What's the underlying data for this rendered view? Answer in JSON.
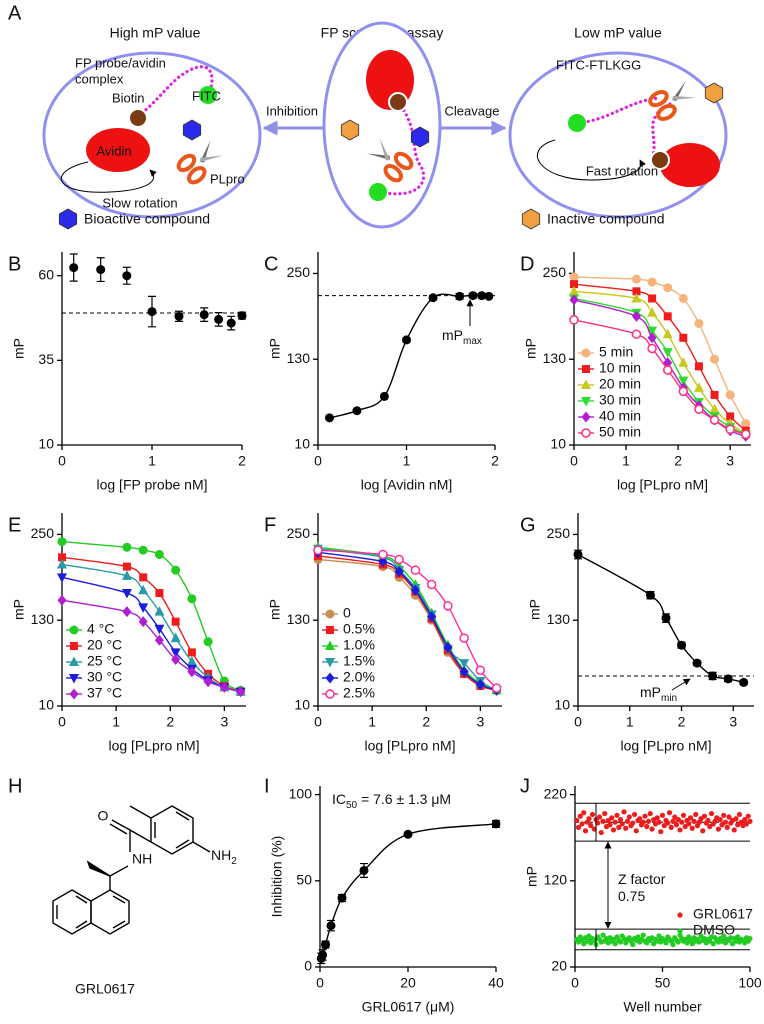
{
  "panel_a": {
    "letter": "A",
    "title_left": "High mP value",
    "title_center": "FP screening assay",
    "title_right": "Low mP value",
    "complex": [
      "FP probe/avidin",
      "complex"
    ],
    "biotin": "Biotin",
    "fitc": "FITC",
    "avidin": "Avidin",
    "slow": "Slow rotation",
    "plpro": "PLpro",
    "inhibition": "Inhibition",
    "cleavage": "Cleavage",
    "peptide": "FITC-FTLKGG",
    "fast": "Fast rotation",
    "bioactive": "Bioactive compound",
    "inactive": "Inactive compound"
  },
  "panel_h": {
    "letter": "H",
    "name": "GRL0617",
    "o": "O",
    "nh": "NH",
    "amine": "NH",
    "amine_sub": "2"
  },
  "chart_data": [
    {
      "type": "scatter",
      "panel": "B",
      "xlabel": "log [FP probe nM]",
      "ylabel": "mP",
      "xlim": [
        0,
        2
      ],
      "ylim": [
        10,
        67
      ],
      "xticks": [
        0,
        1,
        2
      ],
      "yticks": [
        10,
        35,
        60
      ],
      "x": [
        0.13,
        0.43,
        0.72,
        1.0,
        1.3,
        1.58,
        1.74,
        1.88,
        2.0
      ],
      "fit": false,
      "series": [
        {
          "color": "#000000",
          "marker": "circle",
          "values": [
            62.4,
            61.8,
            60.0,
            49.4,
            48.0,
            48.5,
            47.1,
            46.0,
            48.2
          ],
          "errors": [
            4,
            3.5,
            2.5,
            4.5,
            1.5,
            2,
            2,
            2,
            1
          ]
        }
      ],
      "ref_lines": [
        {
          "value": 49,
          "style": "dashed"
        }
      ]
    },
    {
      "type": "scatter",
      "panel": "C",
      "xlabel": "log [Avidin nM]",
      "ylabel": "mP",
      "xlim": [
        0,
        2
      ],
      "ylim": [
        10,
        280
      ],
      "xticks": [
        0,
        1,
        2
      ],
      "yticks": [
        10,
        130,
        250
      ],
      "x": [
        0.13,
        0.44,
        0.75,
        1.0,
        1.3,
        1.6,
        1.75,
        1.85,
        1.93
      ],
      "fit": true,
      "series": [
        {
          "color": "#000000",
          "marker": "circle",
          "values": [
            48,
            58,
            78,
            157,
            216,
            218,
            219,
            219,
            218
          ],
          "errors": [
            2,
            2,
            2,
            3,
            3,
            4,
            3,
            3,
            2
          ]
        }
      ],
      "ref_lines": [
        {
          "value": 219,
          "style": "dashed"
        }
      ],
      "annotations": [
        {
          "text": "mP",
          "sub": "max"
        }
      ]
    },
    {
      "type": "scatter",
      "panel": "D",
      "xlabel": "log [PLpro nM]",
      "ylabel": "mP",
      "xlim": [
        0,
        3.4
      ],
      "ylim": [
        10,
        280
      ],
      "xticks": [
        0,
        1,
        2,
        3
      ],
      "yticks": [
        10,
        130,
        250
      ],
      "x": [
        0,
        1.2,
        1.5,
        1.8,
        2.1,
        2.4,
        2.7,
        3.0,
        3.3
      ],
      "fit": true,
      "legend": "lower left",
      "series": [
        {
          "name": "5 min",
          "color": "#f5b27a",
          "marker": "circle",
          "values": [
            245,
            242,
            238,
            230,
            215,
            180,
            130,
            80,
            40
          ]
        },
        {
          "name": "10 min",
          "color": "#ee1c1c",
          "marker": "square",
          "values": [
            235,
            225,
            215,
            190,
            160,
            120,
            80,
            50,
            30
          ]
        },
        {
          "name": "20 min",
          "color": "#c8c81e",
          "marker": "triangle-up",
          "values": [
            225,
            215,
            195,
            165,
            125,
            90,
            60,
            40,
            25
          ]
        },
        {
          "name": "30 min",
          "color": "#2edc2e",
          "marker": "triangle-down",
          "values": [
            215,
            195,
            170,
            140,
            100,
            70,
            50,
            35,
            25
          ]
        },
        {
          "name": "40 min",
          "color": "#b01ed2",
          "marker": "diamond",
          "values": [
            213,
            190,
            160,
            125,
            90,
            65,
            45,
            30,
            22
          ]
        },
        {
          "name": "50 min",
          "color": "#ff2e7e",
          "marker": "circle-open",
          "values": [
            185,
            165,
            145,
            115,
            85,
            60,
            45,
            32,
            25
          ]
        }
      ]
    },
    {
      "type": "scatter",
      "panel": "E",
      "xlabel": "log [PLpro nM]",
      "ylabel": "mP",
      "xlim": [
        0,
        3.4
      ],
      "ylim": [
        10,
        280
      ],
      "xticks": [
        0,
        1,
        2,
        3
      ],
      "yticks": [
        10,
        130,
        250
      ],
      "x": [
        0,
        1.2,
        1.5,
        1.8,
        2.1,
        2.4,
        2.7,
        3.0,
        3.3
      ],
      "fit": true,
      "legend": "lower left",
      "series": [
        {
          "name": "4 °C",
          "color": "#22cc22",
          "marker": "circle",
          "values": [
            240,
            232,
            228,
            222,
            200,
            160,
            100,
            45,
            32
          ]
        },
        {
          "name": "20 °C",
          "color": "#ee1c1c",
          "marker": "square",
          "values": [
            218,
            205,
            190,
            168,
            128,
            85,
            55,
            38,
            30
          ]
        },
        {
          "name": "25 °C",
          "color": "#2a9aa8",
          "marker": "triangle-up",
          "values": [
            208,
            192,
            172,
            142,
            105,
            72,
            50,
            36,
            30
          ]
        },
        {
          "name": "30 °C",
          "color": "#1c1cdc",
          "marker": "triangle-down",
          "values": [
            190,
            168,
            148,
            118,
            85,
            62,
            46,
            36,
            30
          ]
        },
        {
          "name": "37 °C",
          "color": "#b01ed2",
          "marker": "diamond",
          "values": [
            158,
            142,
            128,
            102,
            75,
            58,
            44,
            36,
            30
          ]
        }
      ]
    },
    {
      "type": "scatter",
      "panel": "F",
      "xlabel": "log [PLpro nM]",
      "ylabel": "mP",
      "xlim": [
        0,
        3.4
      ],
      "ylim": [
        10,
        280
      ],
      "xticks": [
        0,
        1,
        2,
        3
      ],
      "yticks": [
        10,
        130,
        250
      ],
      "x": [
        0,
        1.2,
        1.5,
        1.8,
        2.1,
        2.4,
        2.7,
        3.0,
        3.3
      ],
      "fit": true,
      "legend": "lower left",
      "series": [
        {
          "name": "0",
          "color": "#c89050",
          "marker": "circle",
          "values": [
            215,
            205,
            190,
            165,
            130,
            85,
            55,
            40,
            32
          ]
        },
        {
          "name": "0.5%",
          "color": "#ee1c1c",
          "marker": "square",
          "values": [
            220,
            208,
            195,
            170,
            132,
            88,
            55,
            38,
            32
          ]
        },
        {
          "name": "1.0%",
          "color": "#22cc22",
          "marker": "triangle-up",
          "values": [
            232,
            220,
            205,
            180,
            140,
            95,
            60,
            42,
            32
          ]
        },
        {
          "name": "1.5%",
          "color": "#2a9aa8",
          "marker": "triangle-down",
          "values": [
            230,
            218,
            200,
            175,
            138,
            90,
            70,
            45,
            32
          ]
        },
        {
          "name": "2.0%",
          "color": "#1c1cdc",
          "marker": "diamond",
          "values": [
            225,
            212,
            198,
            172,
            135,
            92,
            58,
            40,
            32
          ]
        },
        {
          "name": "2.5%",
          "color": "#ff2e9e",
          "marker": "circle-open",
          "values": [
            228,
            222,
            215,
            200,
            180,
            150,
            105,
            60,
            35
          ]
        }
      ]
    },
    {
      "type": "scatter",
      "panel": "G",
      "xlabel": "log [PLpro nM]",
      "ylabel": "mP",
      "xlim": [
        0,
        3.4
      ],
      "ylim": [
        10,
        280
      ],
      "xticks": [
        0,
        1,
        2,
        3
      ],
      "yticks": [
        10,
        130,
        250
      ],
      "x": [
        0,
        1.4,
        1.7,
        2.0,
        2.3,
        2.6,
        2.9,
        3.2
      ],
      "fit": true,
      "series": [
        {
          "color": "#000000",
          "marker": "circle",
          "values": [
            222,
            165,
            133,
            95,
            70,
            52,
            48,
            43
          ],
          "errors": [
            6,
            5,
            6,
            4,
            3,
            5,
            4,
            3
          ]
        }
      ],
      "ref_lines": [
        {
          "value": 52,
          "style": "dashed"
        }
      ],
      "annotations": [
        {
          "text": "mP",
          "sub": "min"
        }
      ]
    },
    {
      "type": "scatter",
      "panel": "I",
      "xlabel": "GRL0617 (μM)",
      "ylabel": "Inhibition (%)",
      "xlim": [
        0,
        40
      ],
      "ylim": [
        0,
        105
      ],
      "xticks": [
        0,
        20,
        40
      ],
      "yticks": [
        0,
        50,
        100
      ],
      "x": [
        0.3,
        0.6,
        1.25,
        2.5,
        5,
        10,
        20,
        40
      ],
      "fit": true,
      "series": [
        {
          "color": "#000000",
          "marker": "circle",
          "values": [
            5,
            7,
            13,
            24,
            40,
            56,
            77,
            83
          ],
          "errors": [
            3,
            3,
            2,
            3,
            2,
            4,
            1,
            2
          ]
        }
      ],
      "annotations": [
        {
          "text": "IC",
          "sub": "50",
          "after": " = 7.6 ± 1.3 μM"
        }
      ]
    },
    {
      "type": "scatter",
      "panel": "J",
      "xlabel": "Well number",
      "ylabel": "mP",
      "xlim": [
        0,
        100
      ],
      "ylim": [
        20,
        230
      ],
      "xticks": [
        0,
        50,
        100
      ],
      "yticks": [
        20,
        120,
        220
      ],
      "x": [
        1,
        2,
        3,
        4,
        5,
        6,
        7,
        8,
        9,
        10,
        11,
        12,
        13,
        14,
        15,
        16,
        17,
        18,
        19,
        20,
        21,
        22,
        23,
        24,
        25,
        26,
        27,
        28,
        29,
        30,
        31,
        32,
        33,
        34,
        35,
        36,
        37,
        38,
        39,
        40,
        41,
        42,
        43,
        44,
        45,
        46,
        47,
        48,
        49,
        50,
        51,
        52,
        53,
        54,
        55,
        56,
        57,
        58,
        59,
        60,
        61,
        62,
        63,
        64,
        65,
        66,
        67,
        68,
        69,
        70,
        71,
        72,
        73,
        74,
        75,
        76,
        77,
        78,
        79,
        80,
        81,
        82,
        83,
        84,
        85,
        86,
        87,
        88,
        89,
        90,
        91,
        92,
        93,
        94,
        95,
        96,
        97,
        98,
        99,
        100
      ],
      "fit": false,
      "legend": "lower right",
      "series": [
        {
          "name": "GRL0617",
          "color": "#ee1c1c",
          "marker": "dot",
          "values": [
            190,
            182,
            195,
            186,
            199,
            178,
            188,
            192,
            184,
            197,
            180,
            191,
            187,
            194,
            176,
            189,
            198,
            183,
            190,
            185,
            193,
            179,
            188,
            196,
            182,
            191,
            186,
            200,
            181,
            189,
            194,
            184,
            187,
            197,
            178,
            190,
            192,
            185,
            188,
            195,
            183,
            189,
            198,
            180,
            191,
            186,
            193,
            188,
            177,
            196,
            184,
            190,
            187,
            199,
            182,
            189,
            194,
            185,
            191,
            179,
            188,
            196,
            183,
            190,
            186,
            193,
            181,
            189,
            197,
            184,
            188,
            192,
            178,
            195,
            187,
            190,
            183,
            198,
            186,
            189,
            193,
            180,
            191,
            185,
            196,
            188,
            182,
            194,
            187,
            190,
            179,
            192,
            185,
            197,
            188,
            184,
            191,
            186,
            195,
            189
          ]
        },
        {
          "name": "DMSO",
          "color": "#22cc22",
          "marker": "dot",
          "values": [
            52,
            49,
            55,
            51,
            47,
            54,
            50,
            56,
            48,
            53,
            51,
            46,
            55,
            52,
            49,
            57,
            50,
            53,
            48,
            54,
            50,
            52,
            47,
            55,
            51,
            49,
            56,
            53,
            48,
            52,
            54,
            50,
            46,
            53,
            51,
            55,
            49,
            52,
            57,
            50,
            48,
            53,
            51,
            54,
            47,
            52,
            50,
            56,
            49,
            53,
            51,
            48,
            55,
            52,
            50,
            46,
            54,
            51,
            49,
            57,
            53,
            50,
            52,
            48,
            55,
            51,
            47,
            54,
            50,
            52,
            49,
            56,
            51,
            53,
            48,
            52,
            50,
            55,
            47,
            54,
            51,
            49,
            53,
            50,
            56,
            48,
            52,
            51,
            54,
            47,
            53,
            50,
            55,
            49,
            52,
            51,
            48,
            54,
            50,
            53
          ]
        }
      ],
      "ref_lines": [
        {
          "value": 210,
          "style": "solid"
        },
        {
          "value": 188,
          "style": "dashed"
        },
        {
          "value": 166,
          "style": "solid"
        },
        {
          "value": 64,
          "style": "solid"
        },
        {
          "value": 52,
          "style": "dashed"
        },
        {
          "value": 40,
          "style": "solid"
        }
      ],
      "annotations": [
        {
          "text": "Z factor"
        },
        {
          "text": "0.75"
        }
      ]
    }
  ]
}
